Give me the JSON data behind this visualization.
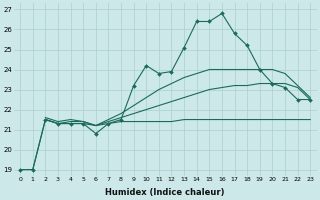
{
  "xlabel": "Humidex (Indice chaleur)",
  "ylabel": "",
  "bg_color": "#cce8e8",
  "grid_color": "#aacfcf",
  "line_color": "#1a6b5a",
  "xlim": [
    -0.5,
    23.5
  ],
  "ylim": [
    18.7,
    27.3
  ],
  "xticks": [
    0,
    1,
    2,
    3,
    4,
    5,
    6,
    7,
    8,
    9,
    10,
    11,
    12,
    13,
    14,
    15,
    16,
    17,
    18,
    19,
    20,
    21,
    22,
    23
  ],
  "yticks": [
    19,
    20,
    21,
    22,
    23,
    24,
    25,
    26,
    27
  ],
  "series": [
    {
      "x": [
        0,
        1,
        2,
        3,
        4,
        5,
        6,
        7,
        8,
        9,
        10,
        11,
        12,
        13,
        14,
        15,
        16,
        17,
        18,
        19,
        20,
        21,
        22,
        23
      ],
      "y": [
        19.0,
        19.0,
        21.5,
        21.3,
        21.3,
        21.3,
        21.2,
        21.3,
        21.4,
        21.4,
        21.4,
        21.4,
        21.4,
        21.5,
        21.5,
        21.5,
        21.5,
        21.5,
        21.5,
        21.5,
        21.5,
        21.5,
        21.5,
        21.5
      ],
      "marker": false
    },
    {
      "x": [
        2,
        3,
        4,
        5,
        6,
        7,
        8,
        9,
        10,
        11,
        12,
        13,
        14,
        15,
        16,
        17,
        18,
        19,
        20,
        21,
        22,
        23
      ],
      "y": [
        21.5,
        21.3,
        21.4,
        21.4,
        21.2,
        21.4,
        21.6,
        21.8,
        22.0,
        22.2,
        22.4,
        22.6,
        22.8,
        23.0,
        23.1,
        23.2,
        23.2,
        23.3,
        23.3,
        23.3,
        23.1,
        22.5
      ],
      "marker": false
    },
    {
      "x": [
        2,
        3,
        4,
        5,
        6,
        7,
        8,
        9,
        10,
        11,
        12,
        13,
        14,
        15,
        16,
        17,
        18,
        19,
        20,
        21,
        22,
        23
      ],
      "y": [
        21.6,
        21.4,
        21.5,
        21.4,
        21.2,
        21.5,
        21.8,
        22.2,
        22.6,
        23.0,
        23.3,
        23.6,
        23.8,
        24.0,
        24.0,
        24.0,
        24.0,
        24.0,
        24.0,
        23.8,
        23.2,
        22.6
      ],
      "marker": false
    },
    {
      "x": [
        0,
        1,
        2,
        3,
        4,
        5,
        6,
        7,
        8,
        9,
        10,
        11,
        12,
        13,
        14,
        15,
        16,
        17,
        18,
        19,
        20,
        21,
        22,
        23
      ],
      "y": [
        19.0,
        19.0,
        21.5,
        21.3,
        21.3,
        21.3,
        20.8,
        21.3,
        21.5,
        23.2,
        24.2,
        23.8,
        23.9,
        25.1,
        26.4,
        26.4,
        26.8,
        25.8,
        25.2,
        24.0,
        23.3,
        23.1,
        22.5,
        22.5
      ],
      "marker": true
    }
  ]
}
